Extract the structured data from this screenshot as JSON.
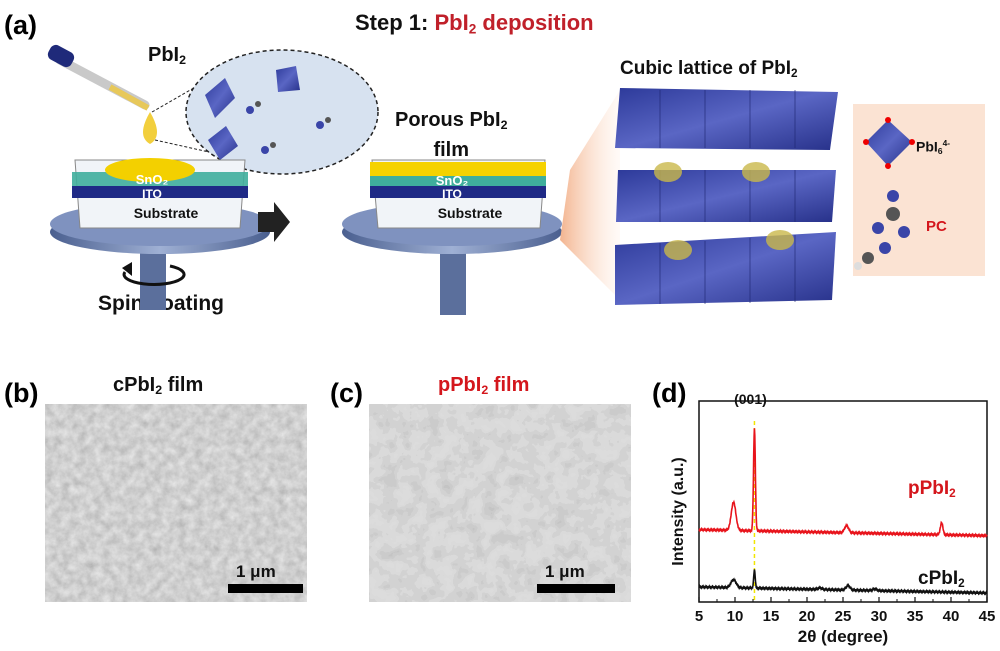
{
  "panel_a": {
    "letter": "(a)",
    "step_prefix": "Step 1: ",
    "step_title_base": "PbI",
    "step_title_sub": "2",
    "step_title_rest": " deposition",
    "pbi2_label_base": "PbI",
    "pbi2_label_sub": "2",
    "porous_label_base": "Porous PbI",
    "porous_label_sub": "2",
    "porous_label_line2": "film",
    "layers": {
      "sno2": "SnO₂",
      "ito": "ITO",
      "substrate": "Substrate"
    },
    "spin_coating": "Spin coating",
    "lattice_title_base": "Cubic lattice of PbI",
    "lattice_title_sub": "2",
    "legend": {
      "octahedron_base": "PbI",
      "octahedron_sub": "6",
      "octahedron_sup": "4-",
      "molecule": "PC"
    },
    "colors": {
      "octahedron": "#3a45a8",
      "film": "#f5d200",
      "legend_bg": "#fbe3d3",
      "accent_red": "#d4161c"
    }
  },
  "panel_b": {
    "letter": "(b)",
    "title_base": "cPbI",
    "title_sub": "2",
    "title_rest": " film",
    "scale_bar": "1 μm"
  },
  "panel_c": {
    "letter": "(c)",
    "title_base": "pPbI",
    "title_sub": "2",
    "title_rest": " film",
    "scale_bar": "1 μm"
  },
  "chart_data": {
    "type": "line",
    "letter": "(d)",
    "xlabel": "2θ (degree)",
    "ylabel": "Intensity (a.u.)",
    "xlim": [
      5,
      45
    ],
    "ylim": [
      0,
      100
    ],
    "xticks": [
      "5",
      "10",
      "15",
      "20",
      "25",
      "30",
      "35",
      "40",
      "45"
    ],
    "annotation": {
      "text": "(001)",
      "x": 12.7
    },
    "grid": false,
    "series": [
      {
        "name_base": "pPbI",
        "name_sub": "2",
        "color": "#e8141c",
        "baseline": [
          36,
          33
        ],
        "peaks": [
          {
            "x": 9.8,
            "h": 14,
            "w": 0.45
          },
          {
            "x": 12.7,
            "h": 51,
            "w": 0.18
          },
          {
            "x": 25.5,
            "h": 3.5,
            "w": 0.4
          },
          {
            "x": 38.7,
            "h": 6,
            "w": 0.25
          }
        ]
      },
      {
        "name_base": "cPbI",
        "name_sub": "2",
        "color": "#111111",
        "baseline": [
          7.5,
          4.5
        ],
        "peaks": [
          {
            "x": 9.8,
            "h": 4,
            "w": 0.5
          },
          {
            "x": 12.7,
            "h": 9,
            "w": 0.15
          },
          {
            "x": 25.7,
            "h": 2.2,
            "w": 0.4
          },
          {
            "x": 21.8,
            "h": 0.8,
            "w": 0.4
          },
          {
            "x": 29.4,
            "h": 0.8,
            "w": 0.4
          }
        ]
      }
    ]
  }
}
